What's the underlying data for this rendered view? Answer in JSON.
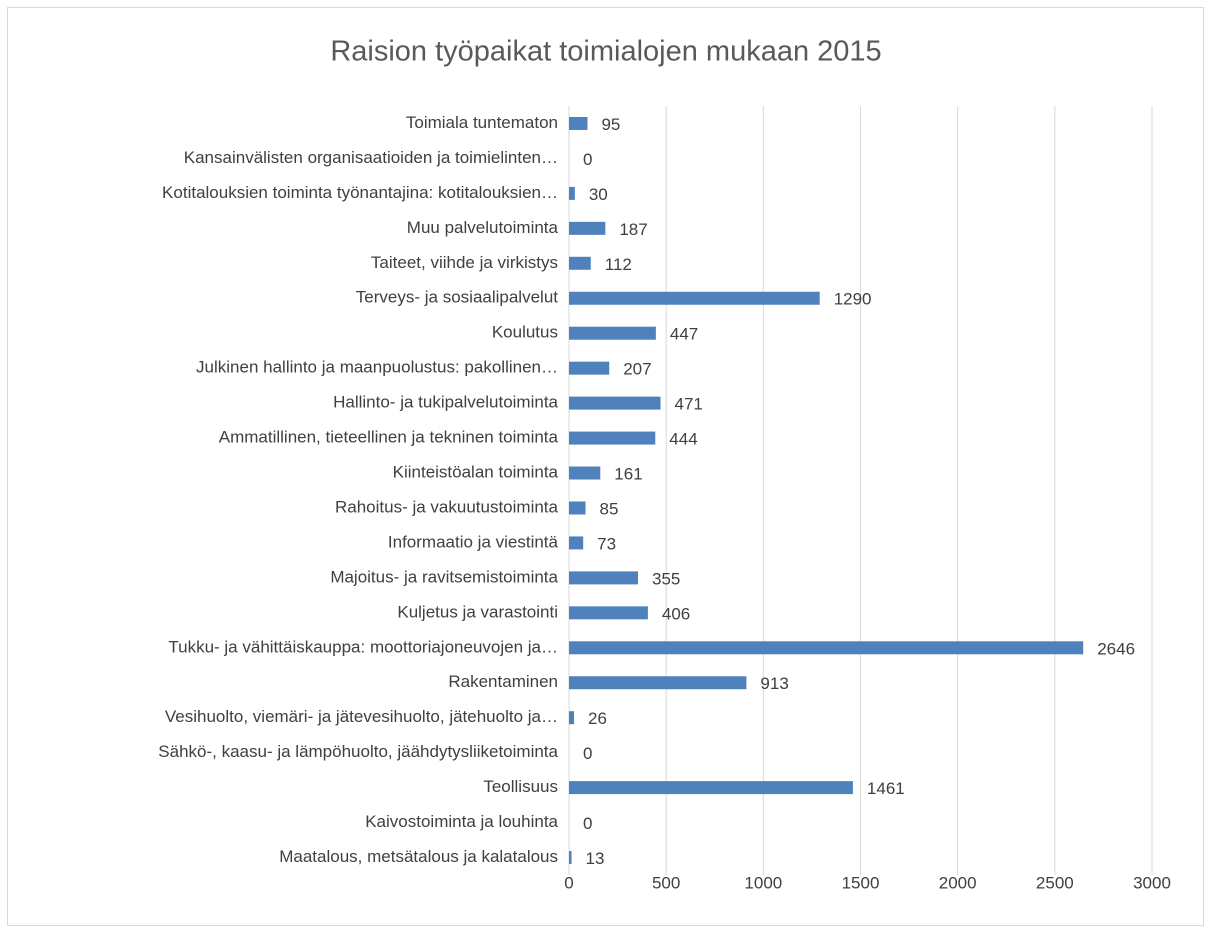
{
  "chart_data": {
    "type": "bar",
    "orientation": "horizontal",
    "title": "Raision työpaikat toimialojen mukaan 2015",
    "categories": [
      "Toimiala tuntematon",
      "Kansainvälisten organisaatioiden ja toimielinten…",
      "Kotitalouksien toiminta työnantajina: kotitalouksien…",
      "Muu palvelutoiminta",
      "Taiteet, viihde ja virkistys",
      "Terveys- ja sosiaalipalvelut",
      "Koulutus",
      "Julkinen hallinto ja maanpuolustus: pakollinen…",
      "Hallinto- ja tukipalvelutoiminta",
      "Ammatillinen, tieteellinen ja tekninen toiminta",
      "Kiinteistöalan toiminta",
      "Rahoitus- ja vakuutustoiminta",
      "Informaatio ja viestintä",
      "Majoitus- ja ravitsemistoiminta",
      "Kuljetus ja varastointi",
      "Tukku- ja vähittäiskauppa: moottoriajoneuvojen ja…",
      "Rakentaminen",
      "Vesihuolto, viemäri- ja jätevesihuolto, jätehuolto ja…",
      "Sähkö-, kaasu- ja lämpöhuolto, jäähdytysliiketoiminta",
      "Teollisuus",
      "Kaivostoiminta ja louhinta",
      "Maatalous, metsätalous ja kalatalous"
    ],
    "values": [
      95,
      0,
      30,
      187,
      112,
      1290,
      447,
      207,
      471,
      444,
      161,
      85,
      73,
      355,
      406,
      2646,
      913,
      26,
      0,
      1461,
      0,
      13
    ],
    "color": "#4f81bd",
    "xlim": [
      0,
      3000
    ],
    "xticks": [
      0,
      500,
      1000,
      1500,
      2000,
      2500,
      3000
    ],
    "grid": true
  }
}
